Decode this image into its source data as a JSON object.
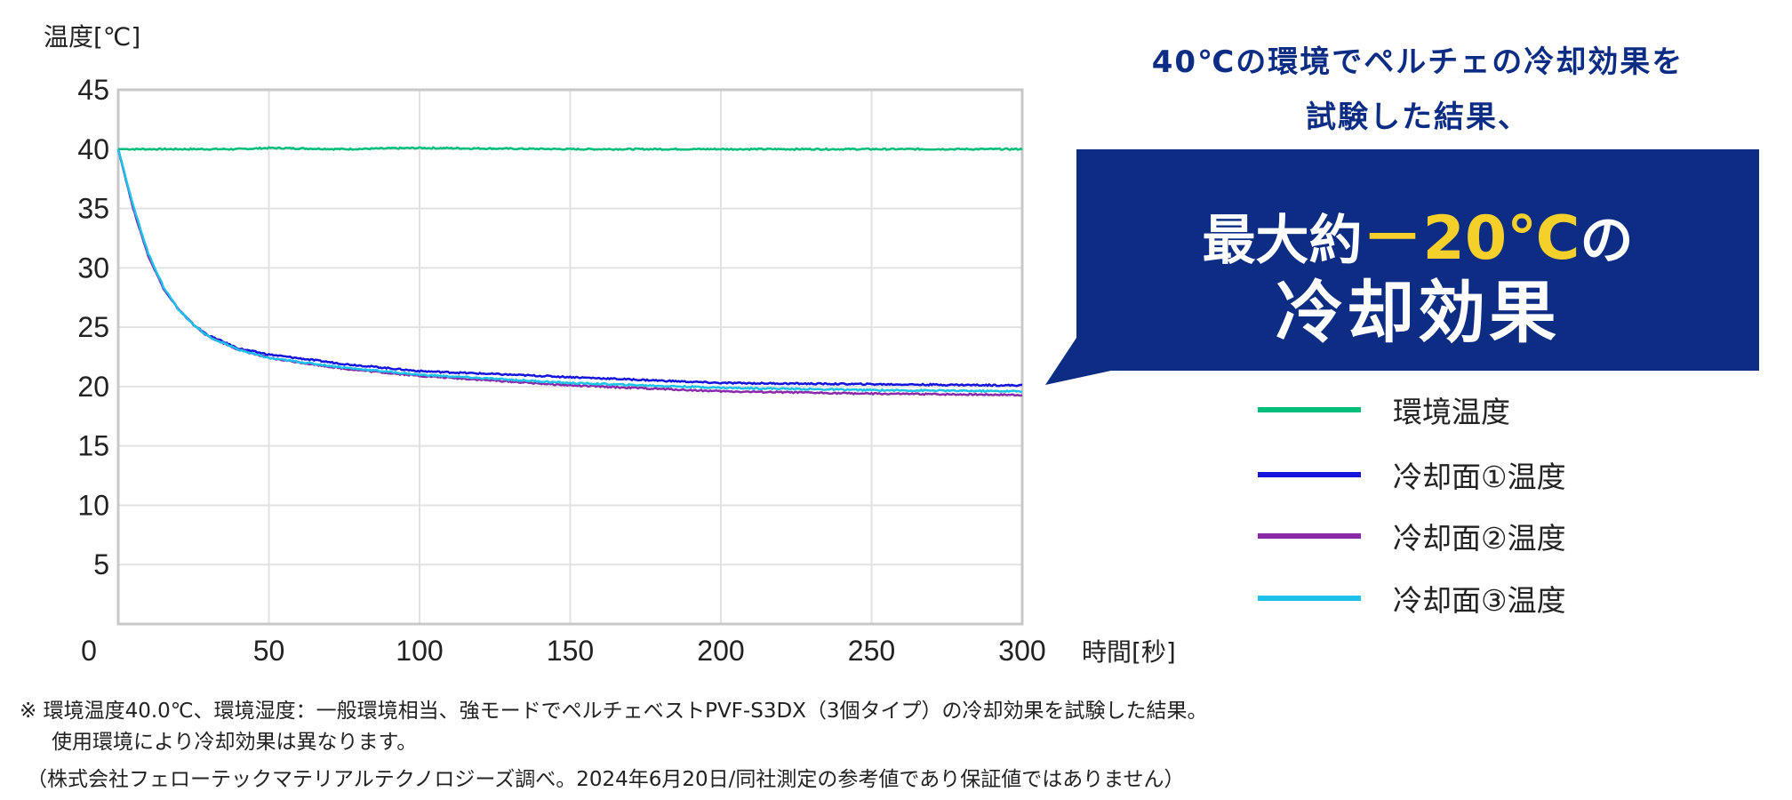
{
  "headline": {
    "line1": "40℃の環境でペルチェの冷却効果を",
    "line2": "試験した結果、"
  },
  "callout": {
    "prefix": "最大約",
    "value": "－20℃",
    "suffix": "の",
    "line2": "冷却効果",
    "bg_color": "#0c2d83",
    "accent_color": "#f5cf2a"
  },
  "chart_data": {
    "type": "line",
    "ylabel": "温度[℃]",
    "xlabel": "時間[秒]",
    "xlim": [
      0,
      300
    ],
    "ylim": [
      0,
      45
    ],
    "xticks": [
      "0",
      "50",
      "100",
      "150",
      "200",
      "250",
      "300"
    ],
    "yticks": [
      "5",
      "10",
      "15",
      "20",
      "25",
      "30",
      "35",
      "40",
      "45"
    ],
    "grid": true,
    "legend_placement": "right",
    "x": [
      0,
      5,
      10,
      15,
      20,
      25,
      30,
      40,
      50,
      75,
      100,
      150,
      200,
      250,
      300
    ],
    "series": [
      {
        "name": "環境温度",
        "color": "#00bf7a",
        "values": [
          40,
          40,
          40,
          40,
          40,
          40,
          40,
          40,
          40.1,
          40,
          40.1,
          40,
          40,
          40,
          40
        ]
      },
      {
        "name": "冷却面①温度",
        "color": "#1414dc",
        "values": [
          40,
          35,
          31,
          28.3,
          26.5,
          25.2,
          24.3,
          23.2,
          22.7,
          21.9,
          21.3,
          20.8,
          20.3,
          20.2,
          20.1
        ]
      },
      {
        "name": "冷却面②温度",
        "color": "#8a2aa8",
        "values": [
          40,
          35,
          31,
          28.3,
          26.5,
          25.2,
          24.2,
          23.1,
          22.4,
          21.5,
          20.9,
          20.1,
          19.6,
          19.4,
          19.3
        ]
      },
      {
        "name": "冷却面③温度",
        "color": "#1cc2ea",
        "values": [
          40,
          35.2,
          31.2,
          28.4,
          26.5,
          25.2,
          24.2,
          23.1,
          22.4,
          21.6,
          21.0,
          20.3,
          19.9,
          19.7,
          19.6
        ]
      }
    ]
  },
  "notes": {
    "line1": "※ 環境温度40.0℃、環境湿度：一般環境相当、強モードでペルチェベストPVF-S3DX（3個タイプ）の冷却効果を試験した結果。",
    "line2": "使用環境により冷却効果は異なります。",
    "line3": "（株式会社フェローテックマテリアルテクノロジーズ調べ。2024年6月20日/同社測定の参考値であり保証値ではありません）"
  }
}
